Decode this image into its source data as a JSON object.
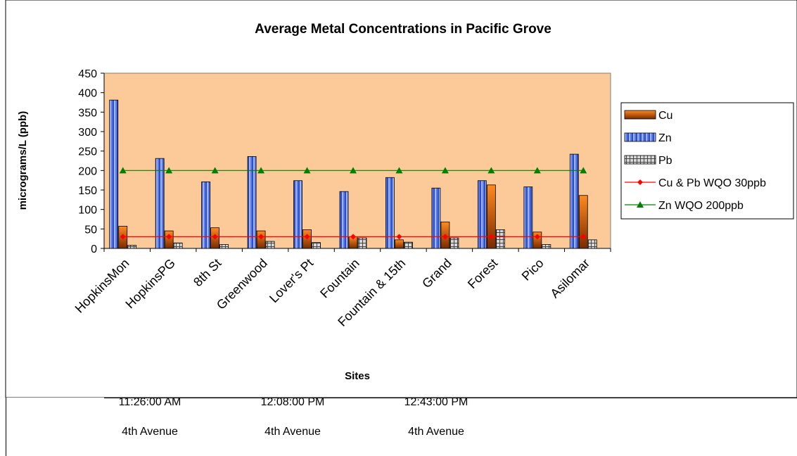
{
  "chart_data": {
    "type": "bar",
    "title": "Average Metal Concentrations in Pacific Grove",
    "xlabel": "Sites",
    "ylabel": "micrograms/L (ppb)",
    "ylim": [
      0,
      450
    ],
    "yticks": [
      "0",
      "50",
      "100",
      "150",
      "200",
      "250",
      "300",
      "350",
      "400",
      "450"
    ],
    "categories": [
      "HopkinsMon",
      "HopkinsPG",
      "8th St",
      "Greenwood",
      "Lover's Pt",
      "Fountain",
      "Fountain & 15th",
      "Grand",
      "Forest",
      "Pico",
      "Asilomar"
    ],
    "series": [
      {
        "name": "Cu",
        "kind": "bar",
        "color": "#e8620c",
        "values": [
          57,
          45,
          53,
          45,
          48,
          30,
          22,
          68,
          163,
          42,
          136
        ]
      },
      {
        "name": "Zn",
        "kind": "bar",
        "color": "#4a6ee0",
        "values": [
          381,
          231,
          171,
          236,
          174,
          146,
          182,
          155,
          174,
          158,
          242
        ]
      },
      {
        "name": "Pb",
        "kind": "bar",
        "color": "#a8a8a8",
        "values": [
          8,
          14,
          10,
          18,
          15,
          27,
          16,
          27,
          48,
          10,
          22
        ]
      },
      {
        "name": "Cu & Pb WQO 30ppb",
        "kind": "line",
        "color": "#ff0000",
        "marker": "diamond",
        "values": [
          30,
          30,
          30,
          30,
          30,
          30,
          30,
          30,
          30,
          30,
          30
        ]
      },
      {
        "name": "Zn WQO 200ppb",
        "kind": "line",
        "color": "#008000",
        "marker": "triangle",
        "values": [
          200,
          200,
          200,
          200,
          200,
          200,
          200,
          200,
          200,
          200,
          200
        ]
      }
    ],
    "plot_background": "#fcc999",
    "grid": false,
    "legend_position": "right"
  },
  "sheet": {
    "row1": [
      "11:26:00 AM",
      "12:08:00 PM",
      "12:43:00 PM"
    ],
    "row2": [
      "4th Avenue",
      "4th Avenue",
      "4th Avenue"
    ]
  }
}
